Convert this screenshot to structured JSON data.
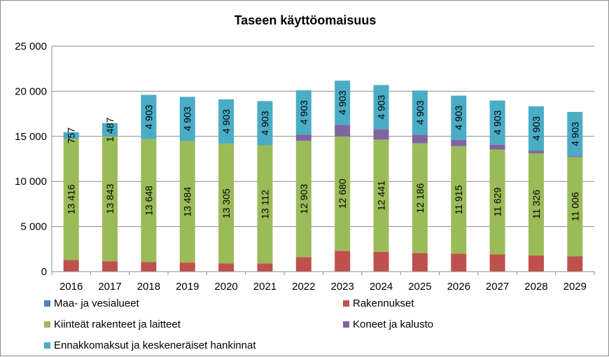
{
  "chart_data": {
    "type": "bar",
    "stacked": true,
    "title": "Taseen käyttöomaisuus",
    "xlabel": "",
    "ylabel": "",
    "ylim": [
      0,
      25000
    ],
    "yticks": [
      0,
      5000,
      10000,
      15000,
      20000,
      25000
    ],
    "ytick_labels": [
      "0",
      "5 000",
      "10 000",
      "15 000",
      "20 000",
      "25 000"
    ],
    "grid": true,
    "legend_position": "bottom",
    "categories": [
      "2016",
      "2017",
      "2018",
      "2019",
      "2020",
      "2021",
      "2022",
      "2023",
      "2024",
      "2025",
      "2026",
      "2027",
      "2028",
      "2029"
    ],
    "series": [
      {
        "name": "Maa- ja vesialueet",
        "color": "#4f81bd",
        "values": [
          0,
          0,
          0,
          0,
          0,
          0,
          0,
          0,
          0,
          0,
          0,
          0,
          0,
          0
        ],
        "labels": []
      },
      {
        "name": "Rakennukset",
        "color": "#c0504d",
        "values": [
          1300,
          1150,
          1050,
          1000,
          900,
          900,
          1600,
          2300,
          2200,
          2050,
          2000,
          1900,
          1800,
          1700
        ],
        "labels": []
      },
      {
        "name": "Kiinteät rakenteet ja laitteet",
        "color": "#9bbb59",
        "values": [
          13416,
          13843,
          13648,
          13484,
          13305,
          13112,
          12903,
          12680,
          12441,
          12186,
          11915,
          11629,
          11326,
          11006
        ],
        "labels": [
          "13 416",
          "13 843",
          "13 648",
          "13 484",
          "13 305",
          "13 112",
          "12 903",
          "12 680",
          "12 441",
          "12 186",
          "11 915",
          "11 629",
          "11 326",
          "11 006"
        ]
      },
      {
        "name": "Koneet ja kalusto",
        "color": "#8064a2",
        "values": [
          0,
          0,
          0,
          0,
          0,
          0,
          700,
          1300,
          1150,
          950,
          700,
          550,
          300,
          100
        ],
        "labels": []
      },
      {
        "name": "Ennakkomaksut ja keskeneräiset hankinnat",
        "color": "#4bacc6",
        "values": [
          757,
          1487,
          4903,
          4903,
          4903,
          4903,
          4903,
          4903,
          4903,
          4903,
          4903,
          4903,
          4903,
          4903
        ],
        "labels": [
          "757",
          "1 487",
          "4 903",
          "4 903",
          "4 903",
          "4 903",
          "4 903",
          "4 903",
          "4 903",
          "4 903",
          "4 903",
          "4 903",
          "4 903",
          "4 903"
        ]
      }
    ]
  }
}
